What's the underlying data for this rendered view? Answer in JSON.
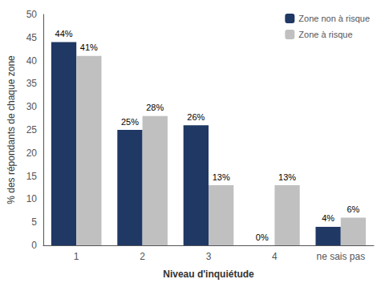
{
  "chart_data": {
    "type": "bar",
    "xlabel": "Niveau d'inquiétude",
    "ylabel": "% des répondants de chaque zone",
    "categories": [
      "1",
      "2",
      "3",
      "4",
      "ne sais pas"
    ],
    "series": [
      {
        "name": "Zone non à risque",
        "color": "#1F3864",
        "values": [
          44,
          25,
          26,
          0,
          4
        ],
        "value_labels": [
          "44%",
          "25%",
          "26%",
          "0%",
          "4%"
        ]
      },
      {
        "name": "Zone à risque",
        "color": "#C0C0C0",
        "values": [
          41,
          28,
          13,
          13,
          6
        ],
        "value_labels": [
          "41%",
          "28%",
          "13%",
          "13%",
          "6%"
        ]
      }
    ],
    "ylim": [
      0,
      50
    ],
    "yticks": [
      0,
      5,
      10,
      15,
      20,
      25,
      30,
      35,
      40,
      45,
      50
    ],
    "grid": false,
    "legend": "upper right",
    "data_labels": true
  }
}
